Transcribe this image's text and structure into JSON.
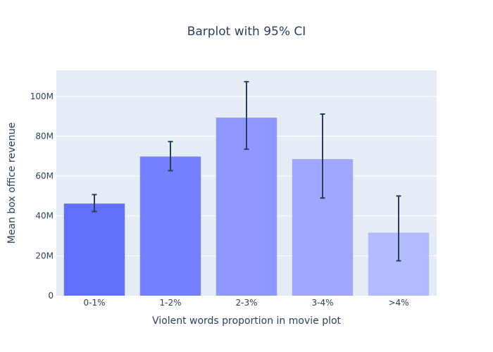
{
  "chart_data": {
    "type": "bar",
    "title": "Barplot with 95% CI",
    "xlabel": "Violent words proportion in movie plot",
    "ylabel": "Mean box office revenue",
    "categories": [
      "0-1%",
      "1-2%",
      "2-3%",
      "3-4%",
      ">4%"
    ],
    "values": [
      46200000,
      69800000,
      89300000,
      68500000,
      31600000
    ],
    "ci_low": [
      42200000,
      62700000,
      73500000,
      49000000,
      17500000
    ],
    "ci_high": [
      50700000,
      77300000,
      107300000,
      91100000,
      50000000
    ],
    "bar_colors": [
      "#636efa",
      "#7580fc",
      "#8d97fd",
      "#9fa8fe",
      "#b3bbff"
    ],
    "ylim": [
      0,
      113000000
    ],
    "yticks": [
      0,
      20000000,
      40000000,
      60000000,
      80000000,
      100000000
    ],
    "ytick_labels": [
      "0",
      "20M",
      "40M",
      "60M",
      "80M",
      "100M"
    ],
    "grid": true,
    "colors": {
      "plot_bg": "#e5ecf6",
      "text": "#2a3f5f",
      "error_bar": "#2a3f5f"
    }
  }
}
